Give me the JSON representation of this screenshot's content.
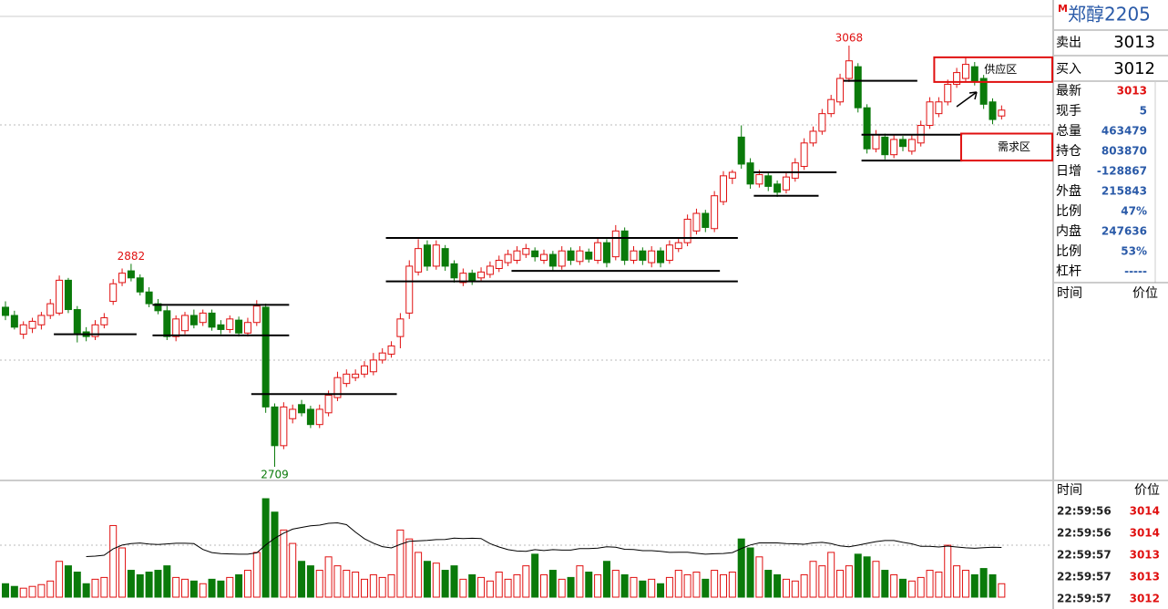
{
  "chart_data": {
    "type": "candlestick",
    "up_color": "#e01010",
    "down_color": "#0a7a0a",
    "candles": [
      [
        2845,
        2850,
        2834,
        2838
      ],
      [
        2838,
        2842,
        2826,
        2828
      ],
      [
        2822,
        2833,
        2818,
        2830
      ],
      [
        2827,
        2836,
        2823,
        2833
      ],
      [
        2830,
        2841,
        2826,
        2838
      ],
      [
        2838,
        2852,
        2835,
        2848
      ],
      [
        2840,
        2872,
        2838,
        2868
      ],
      [
        2868,
        2870,
        2840,
        2843
      ],
      [
        2843,
        2846,
        2815,
        2823
      ],
      [
        2824,
        2828,
        2816,
        2820
      ],
      [
        2820,
        2834,
        2817,
        2830
      ],
      [
        2830,
        2840,
        2827,
        2836
      ],
      [
        2850,
        2869,
        2847,
        2865
      ],
      [
        2866,
        2878,
        2863,
        2874
      ],
      [
        2876,
        2882,
        2867,
        2870
      ],
      [
        2870,
        2873,
        2855,
        2858
      ],
      [
        2858,
        2862,
        2845,
        2848
      ],
      [
        2848,
        2852,
        2839,
        2842
      ],
      [
        2842,
        2846,
        2817,
        2820
      ],
      [
        2820,
        2838,
        2816,
        2835
      ],
      [
        2825,
        2841,
        2822,
        2838
      ],
      [
        2838,
        2843,
        2827,
        2830
      ],
      [
        2832,
        2843,
        2829,
        2840
      ],
      [
        2840,
        2843,
        2825,
        2828
      ],
      [
        2830,
        2834,
        2822,
        2826
      ],
      [
        2826,
        2838,
        2823,
        2835
      ],
      [
        2834,
        2837,
        2820,
        2823
      ],
      [
        2823,
        2836,
        2820,
        2832
      ],
      [
        2832,
        2851,
        2829,
        2846
      ],
      [
        2845,
        2848,
        2755,
        2760
      ],
      [
        2760,
        2763,
        2709,
        2727
      ],
      [
        2727,
        2764,
        2724,
        2760
      ],
      [
        2750,
        2762,
        2746,
        2758
      ],
      [
        2762,
        2766,
        2752,
        2755
      ],
      [
        2758,
        2761,
        2742,
        2745
      ],
      [
        2745,
        2762,
        2742,
        2758
      ],
      [
        2755,
        2774,
        2752,
        2770
      ],
      [
        2768,
        2790,
        2765,
        2785
      ],
      [
        2780,
        2792,
        2777,
        2788
      ],
      [
        2785,
        2792,
        2782,
        2788
      ],
      [
        2788,
        2799,
        2785,
        2795
      ],
      [
        2790,
        2806,
        2787,
        2800
      ],
      [
        2800,
        2810,
        2797,
        2806
      ],
      [
        2805,
        2816,
        2802,
        2812
      ],
      [
        2820,
        2840,
        2810,
        2835
      ],
      [
        2840,
        2885,
        2835,
        2880
      ],
      [
        2875,
        2903,
        2872,
        2895
      ],
      [
        2898,
        2902,
        2876,
        2880
      ],
      [
        2880,
        2902,
        2877,
        2898
      ],
      [
        2895,
        2898,
        2876,
        2880
      ],
      [
        2882,
        2885,
        2866,
        2870
      ],
      [
        2866,
        2878,
        2863,
        2874
      ],
      [
        2874,
        2877,
        2864,
        2867
      ],
      [
        2870,
        2879,
        2867,
        2875
      ],
      [
        2873,
        2884,
        2870,
        2880
      ],
      [
        2878,
        2889,
        2875,
        2885
      ],
      [
        2883,
        2894,
        2880,
        2890
      ],
      [
        2885,
        2897,
        2882,
        2893
      ],
      [
        2890,
        2899,
        2887,
        2895
      ],
      [
        2893,
        2896,
        2884,
        2888
      ],
      [
        2885,
        2894,
        2882,
        2890
      ],
      [
        2890,
        2893,
        2876,
        2880
      ],
      [
        2880,
        2897,
        2877,
        2893
      ],
      [
        2893,
        2896,
        2881,
        2885
      ],
      [
        2884,
        2897,
        2881,
        2893
      ],
      [
        2892,
        2895,
        2883,
        2886
      ],
      [
        2885,
        2904,
        2882,
        2900
      ],
      [
        2900,
        2903,
        2879,
        2883
      ],
      [
        2888,
        2915,
        2885,
        2910
      ],
      [
        2910,
        2913,
        2881,
        2885
      ],
      [
        2885,
        2897,
        2882,
        2893
      ],
      [
        2893,
        2896,
        2881,
        2885
      ],
      [
        2883,
        2897,
        2879,
        2893
      ],
      [
        2893,
        2896,
        2879,
        2883
      ],
      [
        2885,
        2902,
        2882,
        2898
      ],
      [
        2895,
        2904,
        2892,
        2900
      ],
      [
        2900,
        2924,
        2897,
        2920
      ],
      [
        2910,
        2929,
        2907,
        2925
      ],
      [
        2925,
        2928,
        2909,
        2913
      ],
      [
        2912,
        2944,
        2909,
        2940
      ],
      [
        2935,
        2961,
        2932,
        2957
      ],
      [
        2955,
        2962,
        2950,
        2960
      ],
      [
        2990,
        3000,
        2963,
        2967
      ],
      [
        2968,
        2972,
        2946,
        2950
      ],
      [
        2950,
        2962,
        2947,
        2958
      ],
      [
        2957,
        2960,
        2944,
        2948
      ],
      [
        2950,
        2953,
        2939,
        2943
      ],
      [
        2945,
        2960,
        2942,
        2956
      ],
      [
        2955,
        2972,
        2952,
        2968
      ],
      [
        2965,
        2989,
        2962,
        2985
      ],
      [
        2985,
        2999,
        2982,
        2995
      ],
      [
        2995,
        3014,
        2992,
        3010
      ],
      [
        3010,
        3026,
        3007,
        3022
      ],
      [
        3020,
        3044,
        3017,
        3040
      ],
      [
        3040,
        3068,
        3037,
        3055
      ],
      [
        3050,
        3053,
        3011,
        3015
      ],
      [
        3015,
        3018,
        2976,
        2980
      ],
      [
        2980,
        2996,
        2977,
        2992
      ],
      [
        2990,
        2993,
        2971,
        2975
      ],
      [
        2975,
        2992,
        2972,
        2988
      ],
      [
        2988,
        2991,
        2978,
        2982
      ],
      [
        2978,
        2992,
        2975,
        2988
      ],
      [
        2985,
        3004,
        2982,
        3000
      ],
      [
        3000,
        3024,
        2997,
        3020
      ],
      [
        3010,
        3024,
        3007,
        3020
      ],
      [
        3020,
        3039,
        3017,
        3035
      ],
      [
        3035,
        3049,
        3032,
        3045
      ],
      [
        3040,
        3058,
        3037,
        3052
      ],
      [
        3050,
        3054,
        3034,
        3038
      ],
      [
        3040,
        3043,
        3014,
        3018
      ],
      [
        3020,
        3023,
        3001,
        3005
      ],
      [
        3008,
        3017,
        3005,
        3013
      ]
    ],
    "volumes": [
      15,
      12,
      10,
      12,
      14,
      18,
      40,
      35,
      28,
      15,
      20,
      22,
      80,
      55,
      30,
      25,
      28,
      30,
      35,
      22,
      20,
      18,
      15,
      20,
      18,
      22,
      25,
      30,
      50,
      110,
      95,
      75,
      60,
      40,
      35,
      30,
      45,
      35,
      30,
      28,
      20,
      25,
      22,
      25,
      75,
      65,
      50,
      40,
      38,
      30,
      35,
      20,
      25,
      22,
      18,
      28,
      20,
      25,
      35,
      48,
      25,
      30,
      20,
      22,
      35,
      28,
      25,
      40,
      30,
      25,
      22,
      18,
      20,
      15,
      22,
      30,
      25,
      28,
      20,
      30,
      25,
      28,
      65,
      55,
      45,
      30,
      25,
      20,
      18,
      25,
      40,
      35,
      50,
      30,
      35,
      48,
      45,
      40,
      30,
      25,
      20,
      18,
      22,
      30,
      28,
      58,
      35,
      30,
      25,
      32,
      25,
      15
    ],
    "peak_labels": [
      14,
      94,
      30
    ],
    "levels": [
      {
        "value": 2822,
        "from": 6,
        "to": 14
      },
      {
        "value": 2847,
        "from": 17,
        "to": 31
      },
      {
        "value": 2821,
        "from": 17,
        "to": 31
      },
      {
        "value": 2771,
        "from": 28,
        "to": 43
      },
      {
        "value": 2904,
        "from": 43,
        "to": 81
      },
      {
        "value": 2867,
        "from": 43,
        "to": 81
      },
      {
        "value": 2876,
        "from": 57,
        "to": 79
      },
      {
        "value": 2960,
        "from": 84,
        "to": 92
      },
      {
        "value": 2940,
        "from": 84,
        "to": 90
      },
      {
        "value": 3038,
        "from": 94,
        "to": 101
      },
      {
        "value": 2992,
        "from": 96,
        "to": 106
      },
      {
        "value": 2970,
        "from": 96,
        "to": 106
      }
    ],
    "zones": [
      {
        "label": "供应区",
        "top": 3058,
        "bottom": 3037,
        "from": 104
      },
      {
        "label": "需求区",
        "top": 2993,
        "bottom": 2970,
        "from": 107
      }
    ]
  },
  "quote_panel": {
    "title": "郑醇2205",
    "badge": "M",
    "sell": {
      "label": "卖出",
      "value": 3013
    },
    "buy": {
      "label": "买入",
      "value": 3012
    },
    "rows": [
      {
        "label": "最新",
        "value": 3013
      },
      {
        "label": "现手",
        "value": 5
      },
      {
        "label": "总量",
        "value": 463479
      },
      {
        "label": "持仓",
        "value": 803870
      },
      {
        "label": "日增",
        "value": -128867
      },
      {
        "label": "外盘",
        "value": 215843
      },
      {
        "label": "比例",
        "value": "47%"
      },
      {
        "label": "内盘",
        "value": 247636
      },
      {
        "label": "比例",
        "value": "53%"
      },
      {
        "label": "杠杆",
        "value": "-----"
      }
    ],
    "header": [
      "时间",
      "价位"
    ],
    "ticks_header": [
      "时间",
      "价位"
    ],
    "ticks": [
      {
        "time": "22:59:56",
        "price": 3014
      },
      {
        "time": "22:59:56",
        "price": 3014
      },
      {
        "time": "22:59:57",
        "price": 3013
      },
      {
        "time": "22:59:57",
        "price": 3013
      },
      {
        "time": "22:59:57",
        "price": 3012
      }
    ]
  }
}
